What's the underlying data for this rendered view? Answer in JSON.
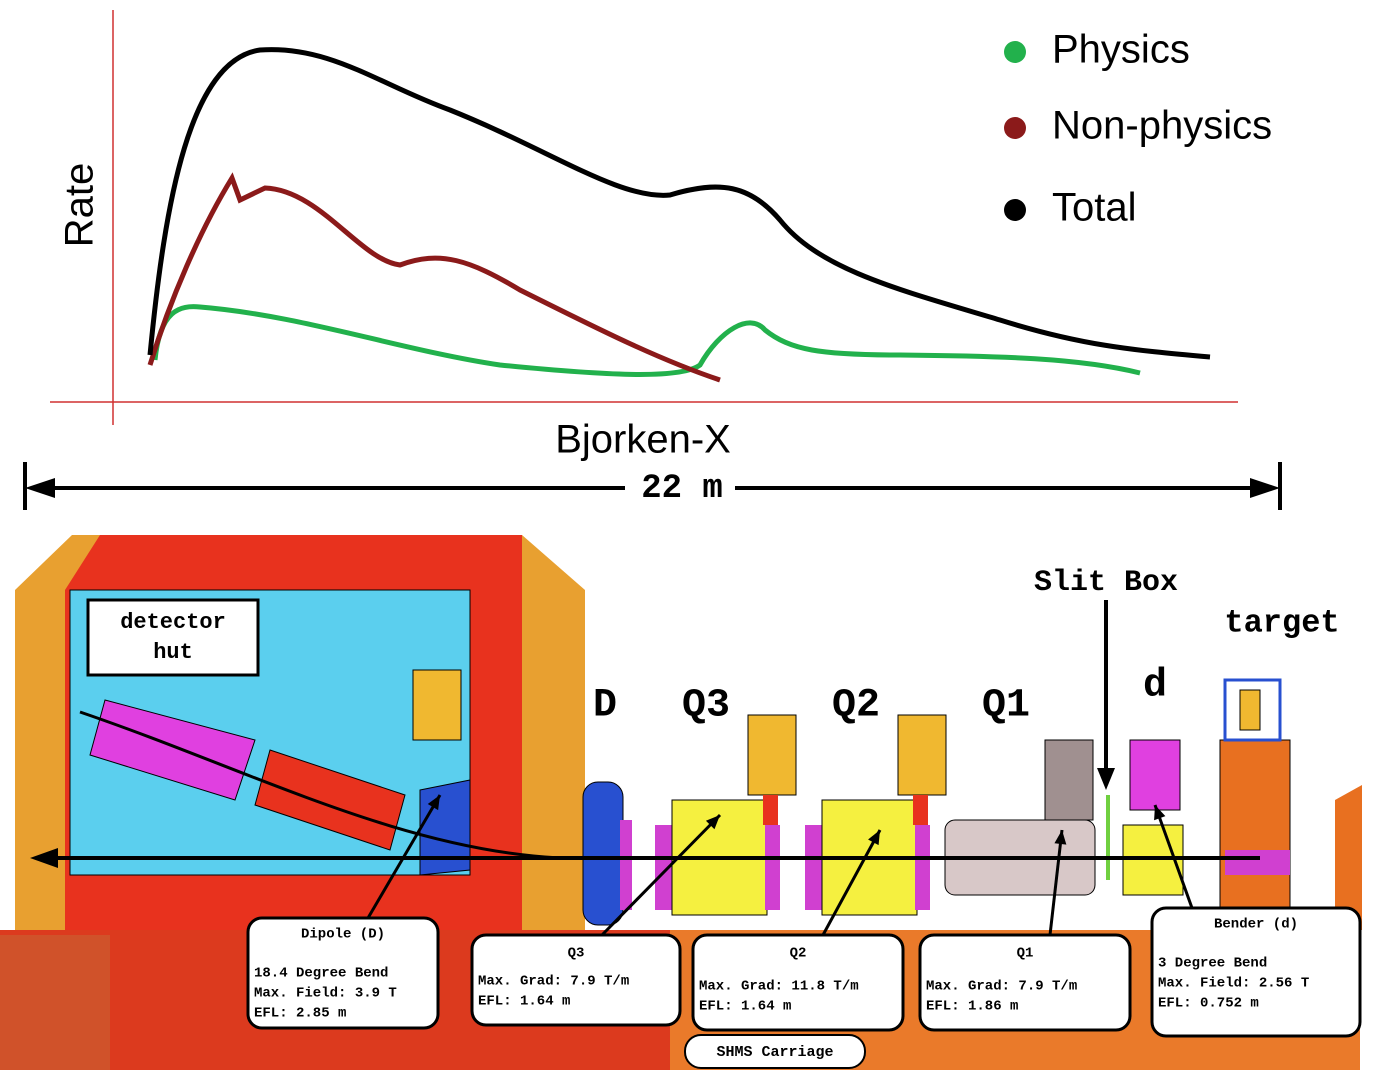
{
  "plot": {
    "y_label": "Rate",
    "x_label": "Bjorken-X",
    "legend": [
      {
        "label": "Physics",
        "color": "#22b14c"
      },
      {
        "label": "Non-physics",
        "color": "#8b1a1a"
      },
      {
        "label": "Total",
        "color": "#000000"
      }
    ]
  },
  "dimension": "22 m",
  "labels": {
    "detector_hut": [
      "detector",
      "hut"
    ],
    "magnets": [
      "D",
      "Q3",
      "Q2",
      "Q1",
      "d"
    ],
    "slit_box": "Slit Box",
    "target": "target"
  },
  "callouts": [
    {
      "title": "Dipole (D)",
      "lines": [
        "18.4 Degree Bend",
        "Max. Field: 3.9 T",
        "EFL: 2.85 m"
      ]
    },
    {
      "title": "Q3",
      "lines": [
        "Max. Grad: 7.9 T/m",
        "EFL: 1.64 m"
      ]
    },
    {
      "title": "Q2",
      "lines": [
        "Max. Grad: 11.8 T/m",
        "EFL: 1.64 m"
      ]
    },
    {
      "title": "Q1",
      "lines": [
        "Max. Grad: 7.9 T/m",
        "EFL: 1.86 m"
      ]
    },
    {
      "title": "Bender (d)",
      "lines": [
        "3 Degree Bend",
        "Max. Field: 2.56 T",
        "EFL: 0.752 m"
      ]
    }
  ],
  "carriage": "SHMS Carriage"
}
